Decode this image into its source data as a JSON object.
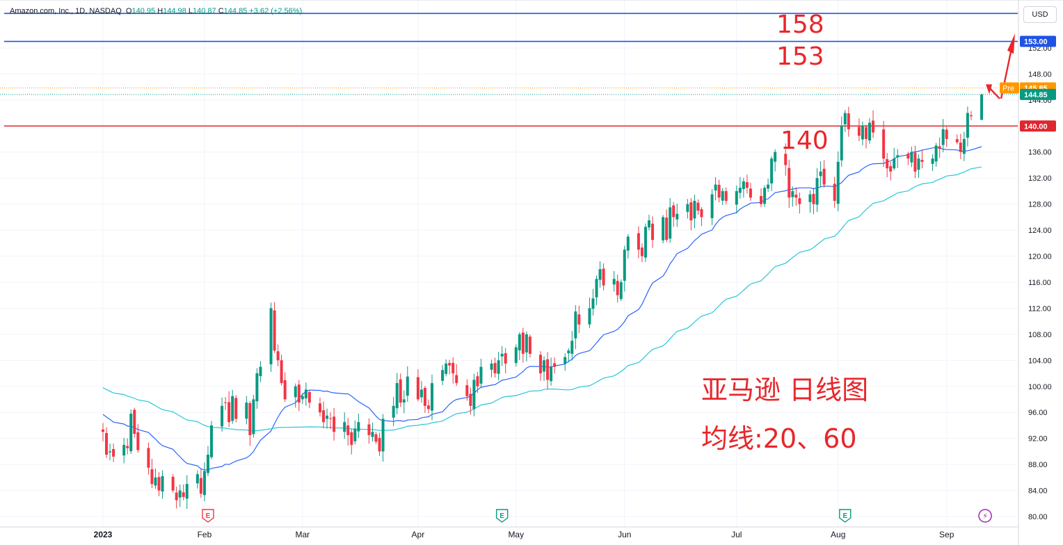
{
  "header": {
    "symbol": "Amazon.com, Inc., 1D, NASDAQ",
    "o_label": "O",
    "o_value": "140.95",
    "h_label": "H",
    "h_value": "144.98",
    "l_label": "L",
    "l_value": "140.87",
    "c_label": "C",
    "c_value": "144.85",
    "change": "+3.62 (+2.56%)"
  },
  "currency_label": "USD",
  "annotations": {
    "level_158": "158",
    "level_153": "153",
    "level_140": "140",
    "title_line1": "亚马逊 日线图",
    "title_line2": "均线:20、60"
  },
  "colors": {
    "up": "#089981",
    "down": "#f23645",
    "ma20": "#2962ff",
    "ma60": "#26c6da",
    "hline_blue": "#1e53e5",
    "hline_red": "#e0262e",
    "annotation": "#e8262a",
    "pre_badge": "#ff9800"
  },
  "chart_data": {
    "type": "candlestick",
    "y_axis": {
      "min": 80,
      "max": 155,
      "ticks": [
        "80.00",
        "84.00",
        "88.00",
        "92.00",
        "96.00",
        "100.00",
        "104.00",
        "108.00",
        "112.00",
        "116.00",
        "120.00",
        "124.00",
        "128.00",
        "132.00",
        "136.00",
        "140.00",
        "144.00",
        "148.00",
        "152.00"
      ]
    },
    "x_axis": {
      "labels": [
        "2023",
        "Feb",
        "Mar",
        "Apr",
        "May",
        "Jun",
        "Jul",
        "Aug",
        "Sep"
      ],
      "label_dates": [
        "2023-01-03",
        "2023-02-01",
        "2023-03-01",
        "2023-04-03",
        "2023-05-01",
        "2023-06-01",
        "2023-07-03",
        "2023-08-01",
        "2023-09-01"
      ]
    },
    "price_labels": [
      {
        "text": "153.00",
        "value": 153,
        "kind": "blue"
      },
      {
        "text": "145.85",
        "value": 145.85,
        "kind": "pre",
        "tag": "Pre"
      },
      {
        "text": "144.85",
        "value": 144.85,
        "kind": "last"
      },
      {
        "text": "140.00",
        "value": 140,
        "kind": "red"
      }
    ],
    "horizontal_lines": [
      {
        "value": 157.3,
        "color": "blue"
      },
      {
        "value": 153,
        "color": "blue"
      },
      {
        "value": 140,
        "color": "red"
      }
    ],
    "event_markers": [
      {
        "letter": "E",
        "date": "2023-02-02",
        "kind": "earnings-past"
      },
      {
        "letter": "E",
        "date": "2023-04-27",
        "kind": "earnings"
      },
      {
        "letter": "E",
        "date": "2023-08-03",
        "kind": "earnings"
      },
      {
        "letter": "⚡",
        "date": "2023-09-12",
        "kind": "dividend"
      }
    ],
    "series": [
      {
        "name": "Amazon.com, Inc.",
        "kind": "candles",
        "closes": [
          93,
          89.5,
          90,
          89.2,
          91,
          90.5,
          95.8,
          92.7,
          90.2,
          87.5,
          85,
          86,
          84,
          86.2,
          84,
          82.5,
          84,
          83,
          85,
          86.5,
          83.5,
          87,
          89.5,
          94,
          97,
          97.5,
          94.5,
          98.5,
          95,
          97.5,
          92.5,
          98,
          102,
          103,
          112,
          105.5,
          104,
          100.5,
          98,
          100,
          97.5,
          98.5,
          99.5,
          97.5,
          96,
          94.5,
          95.5,
          95,
          93,
          94.5,
          92.5,
          91,
          93.5,
          94.5,
          92.5,
          93,
          91.5,
          90,
          95,
          97,
          100.5,
          97.5,
          98,
          101.5,
          98,
          99.5,
          97,
          96.5,
          100.5,
          102.5,
          103.5,
          103.2,
          102,
          100.5,
          98.5,
          97,
          101,
          100,
          103,
          103.5,
          102,
          104,
          105,
          103.5,
          106,
          108,
          105,
          108,
          105,
          102,
          104,
          101,
          103,
          103,
          104.5,
          105.5,
          107,
          111.5,
          109.5,
          112,
          113.5,
          116.5,
          118,
          115.5,
          116.5,
          114,
          116,
          121,
          123,
          121,
          120,
          124.5,
          125.5,
          122.5,
          126,
          122.5,
          127.5,
          126,
          126.5,
          128,
          125.5,
          128.5,
          127,
          126,
          129.5,
          131,
          129,
          130,
          128.5,
          130,
          130.5,
          131.5,
          130.5,
          129,
          128,
          130.5,
          131,
          135,
          136,
          134,
          129,
          130,
          129,
          128,
          129.5,
          128,
          132,
          133,
          131,
          128.5,
          134.5,
          140,
          142,
          139.5,
          138.5,
          140,
          138,
          140.5,
          139,
          135,
          133.5,
          133,
          135,
          135.5,
          135,
          136,
          133,
          135,
          134.5,
          135,
          137,
          136.5,
          139.5,
          138,
          137.5,
          136,
          138,
          142,
          141.5,
          144.85
        ]
      },
      {
        "name": "MA20",
        "kind": "line",
        "period": 20
      },
      {
        "name": "MA60",
        "kind": "line",
        "period": 60
      }
    ]
  }
}
